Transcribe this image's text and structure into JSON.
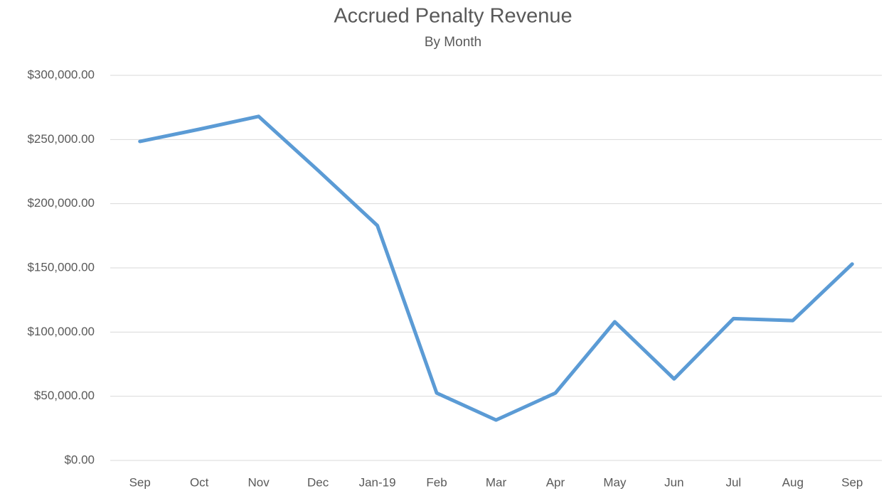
{
  "chart_data": {
    "type": "line",
    "title": "Accrued Penalty Revenue",
    "subtitle": "By Month",
    "categories": [
      "Sep",
      "Oct",
      "Nov",
      "Dec",
      "Jan-19",
      "Feb",
      "Mar",
      "Apr",
      "May",
      "Jun",
      "Jul",
      "Aug",
      "Sep"
    ],
    "series": [
      {
        "name": "Accrued Penalty Revenue",
        "color": "#5b9bd5",
        "values": [
          248500,
          258000,
          268000,
          226000,
          183000,
          52500,
          31500,
          52500,
          108000,
          63500,
          110500,
          109000,
          153000
        ]
      }
    ],
    "ylim": [
      0,
      300000
    ],
    "yticks": [
      {
        "value": 0,
        "label": "$0.00"
      },
      {
        "value": 50000,
        "label": "$50,000.00"
      },
      {
        "value": 100000,
        "label": "$100,000.00"
      },
      {
        "value": 150000,
        "label": "$150,000.00"
      },
      {
        "value": 200000,
        "label": "$200,000.00"
      },
      {
        "value": 250000,
        "label": "$250,000.00"
      },
      {
        "value": 300000,
        "label": "$300,000.00"
      }
    ],
    "grid": true
  }
}
